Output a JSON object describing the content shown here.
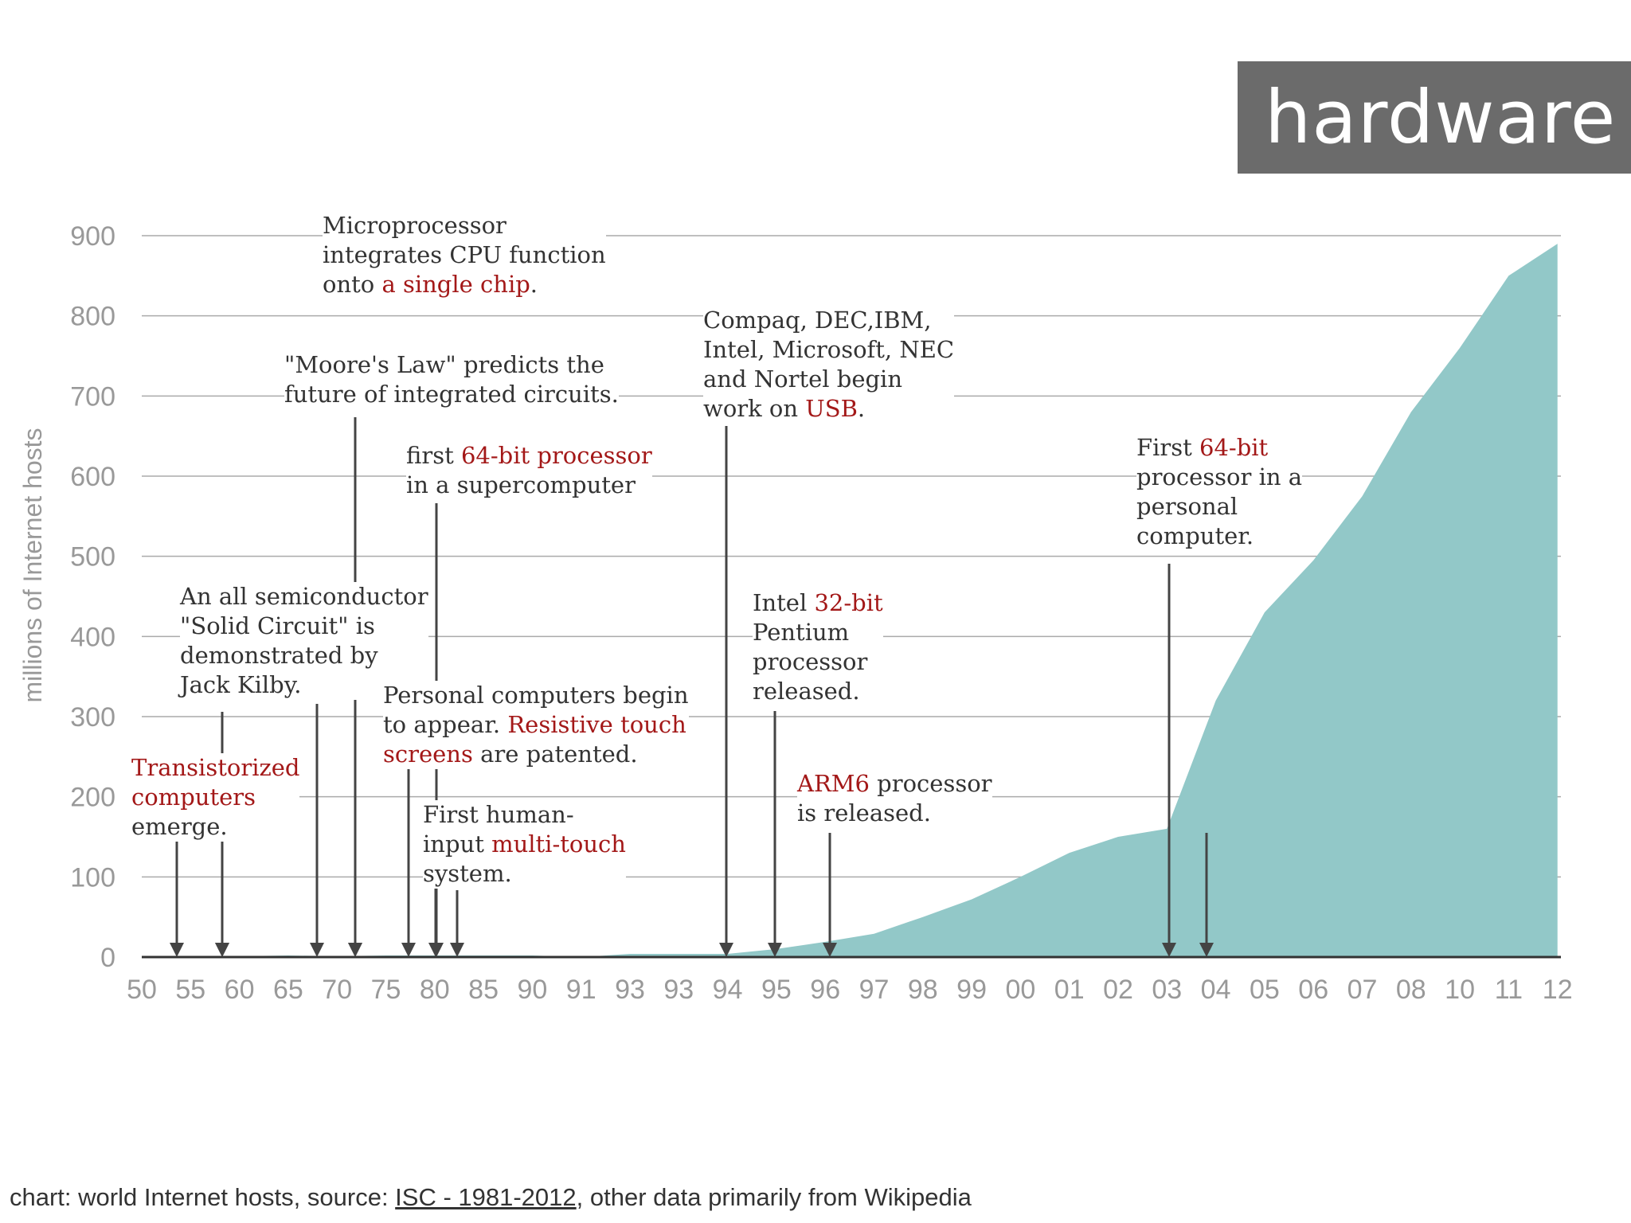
{
  "badge": {
    "label": "hardware"
  },
  "caption": {
    "prefix": "chart: world Internet hosts, source: ",
    "source": "ISC - 1981-2012",
    "suffix": ", other data primarily from Wikipedia"
  },
  "colors": {
    "area": "#92c8c8",
    "highlight": "#a31818",
    "text": "#333333",
    "axis": "#999999",
    "grid": "#aaaaaa",
    "arrow": "#444444"
  },
  "chart_data": {
    "type": "area",
    "ylabel": "millions of Internet hosts",
    "xlabel": "",
    "ylim": [
      0,
      900
    ],
    "yticks": [
      0,
      100,
      200,
      300,
      400,
      500,
      600,
      700,
      800,
      900
    ],
    "grid": true,
    "categories": [
      "50",
      "55",
      "60",
      "65",
      "70",
      "75",
      "80",
      "85",
      "90",
      "91",
      "93",
      "93",
      "94",
      "95",
      "96",
      "97",
      "98",
      "99",
      "00",
      "01",
      "02",
      "03",
      "04",
      "05",
      "06",
      "07",
      "08",
      "10",
      "11",
      "12"
    ],
    "series": [
      {
        "values": [
          0,
          0,
          1,
          2,
          1,
          2,
          2,
          2,
          2,
          0,
          4,
          4,
          4,
          10,
          19,
          29,
          50,
          72,
          100,
          130,
          150,
          160,
          320,
          430,
          495,
          575,
          680,
          760,
          850,
          890
        ]
      }
    ]
  },
  "annotations": [
    {
      "id": "transistor",
      "text": [
        [
          "Transistorized",
          true
        ],
        [
          " computers",
          true
        ],
        [
          "emerge.",
          false
        ]
      ]
    },
    {
      "id": "kilby",
      "text": [
        [
          "An all semiconductor",
          false
        ],
        [
          "\"Solid Circuit\" is",
          false
        ],
        [
          "demonstrated by",
          false
        ],
        [
          "Jack Kilby.",
          false
        ]
      ]
    },
    {
      "id": "moore",
      "text": [
        [
          "\"Moore's Law\" predicts the",
          false
        ],
        [
          "future of integrated circuits.",
          false
        ]
      ]
    },
    {
      "id": "micro",
      "text": [
        [
          "Microprocessor",
          false
        ],
        [
          "integrates CPU function",
          false
        ],
        [
          "onto ",
          false,
          "a single chip",
          true,
          ".",
          false
        ]
      ]
    },
    {
      "id": "super64",
      "text": [
        [
          "first ",
          false,
          "64-bit processor",
          true
        ],
        [
          "in a supercomputer",
          false
        ]
      ]
    },
    {
      "id": "pc",
      "text": [
        [
          "Personal computers begin",
          false
        ],
        [
          "to appear. ",
          false,
          "Resistive touch",
          true
        ],
        [
          "screens",
          true,
          " are patented.",
          false
        ]
      ]
    },
    {
      "id": "multitouch",
      "text": [
        [
          "First human-",
          false
        ],
        [
          "input ",
          false,
          "multi-touch",
          true
        ],
        [
          "system.",
          false
        ]
      ]
    },
    {
      "id": "usb",
      "text": [
        [
          "Compaq, DEC,IBM,",
          false
        ],
        [
          "Intel, Microsoft, NEC",
          false
        ],
        [
          "and Nortel begin",
          false
        ],
        [
          "work on ",
          false,
          "USB",
          true,
          ".",
          false
        ]
      ]
    },
    {
      "id": "pentium",
      "text": [
        [
          "Intel ",
          false,
          "32-bit",
          true
        ],
        [
          "Pentium",
          false
        ],
        [
          "processor",
          false
        ],
        [
          "released.",
          false
        ]
      ]
    },
    {
      "id": "arm6",
      "text": [
        [
          "ARM6",
          true,
          " processor",
          false
        ],
        [
          "is released.",
          false
        ]
      ]
    },
    {
      "id": "pc64",
      "text": [
        [
          "First ",
          false,
          "64-bit",
          true
        ],
        [
          "processor in a",
          false
        ],
        [
          "personal",
          false
        ],
        [
          "computer.",
          false
        ]
      ]
    }
  ]
}
